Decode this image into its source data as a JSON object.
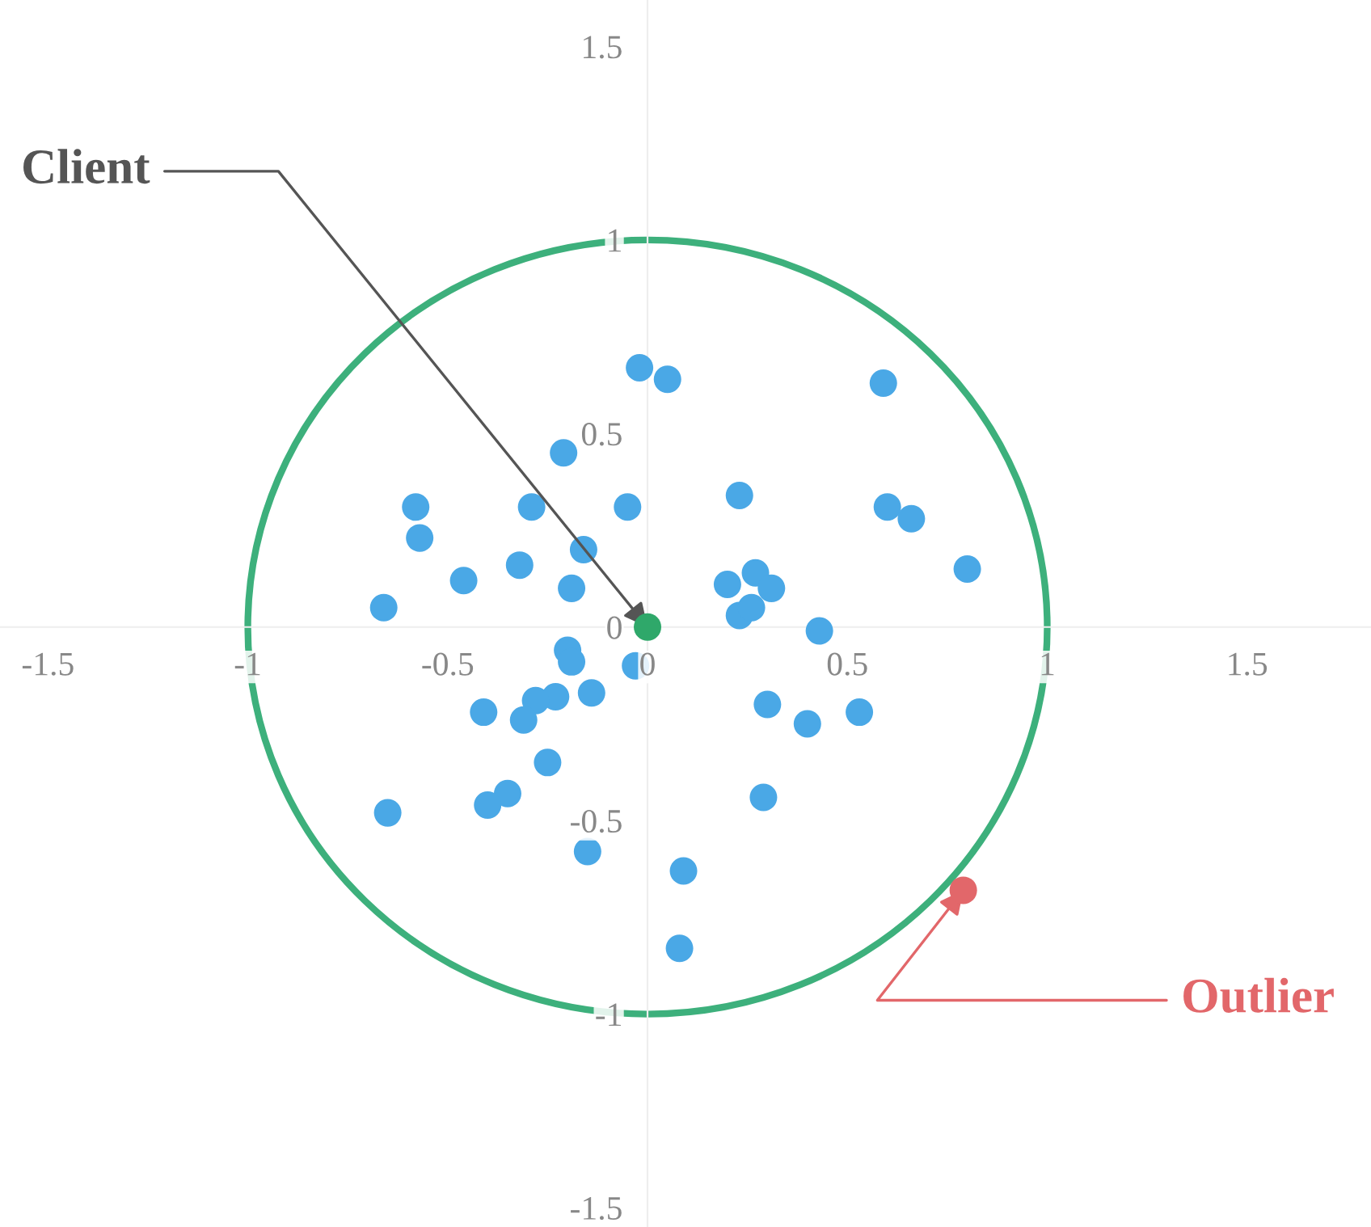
{
  "chart_data": {
    "type": "scatter",
    "xlim": [
      -1.62,
      1.81
    ],
    "ylim": [
      -1.55,
      1.62
    ],
    "xticks": [
      -1.5,
      -1,
      -0.5,
      0,
      0.5,
      1,
      1.5
    ],
    "yticks": [
      -1.5,
      -1,
      -0.5,
      0,
      0.5,
      1,
      1.5
    ],
    "grid": false,
    "marker": "circle",
    "series": [
      {
        "color": "#4aa8e6",
        "x": [
          -0.02,
          0.05,
          0.59,
          -0.21,
          -0.58,
          -0.29,
          -0.05,
          0.23,
          0.6,
          0.66,
          -0.57,
          -0.16,
          -0.32,
          -0.46,
          -0.19,
          0.2,
          0.27,
          0.31,
          0.8,
          -0.66,
          0.23,
          0.26,
          0.43,
          -0.2,
          -0.19,
          -0.03,
          -0.14,
          -0.23,
          -0.28,
          -0.41,
          -0.31,
          0.3,
          0.4,
          0.53,
          -0.25,
          -0.35,
          -0.4,
          -0.65,
          0.29,
          -0.15,
          0.09,
          0.08
        ],
        "values": [
          0.67,
          0.64,
          0.63,
          0.45,
          0.31,
          0.31,
          0.31,
          0.34,
          0.31,
          0.28,
          0.23,
          0.2,
          0.16,
          0.12,
          0.1,
          0.11,
          0.14,
          0.1,
          0.15,
          0.05,
          0.03,
          0.05,
          -0.01,
          -0.06,
          -0.09,
          -0.1,
          -0.17,
          -0.18,
          -0.19,
          -0.22,
          -0.24,
          -0.2,
          -0.25,
          -0.22,
          -0.35,
          -0.43,
          -0.46,
          -0.48,
          -0.44,
          -0.58,
          -0.63,
          -0.83
        ]
      },
      {
        "color": "#2fa86a",
        "x": [
          0
        ],
        "values": [
          0
        ]
      },
      {
        "color": "#e2676a",
        "x": [
          0.79
        ],
        "values": [
          -0.68
        ]
      }
    ],
    "annotations": [
      {
        "text": "Client",
        "x": 0,
        "y": 0
      },
      {
        "text": "Outlier",
        "x": 0.79,
        "y": -0.68
      }
    ]
  }
}
